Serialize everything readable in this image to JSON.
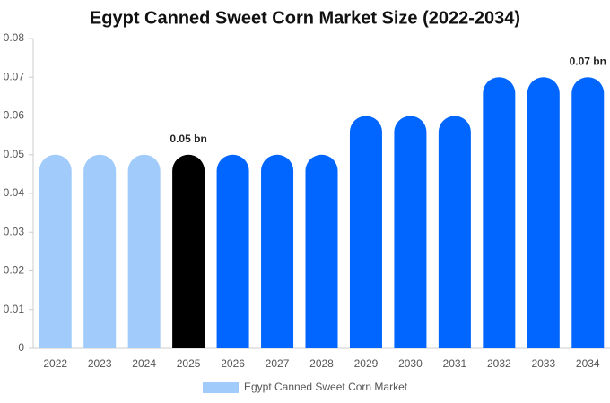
{
  "chart_data": {
    "type": "bar",
    "title": "Egypt Canned Sweet Corn Market Size (2022-2034)",
    "categories": [
      "2022",
      "2023",
      "2024",
      "2025",
      "2026",
      "2027",
      "2028",
      "2029",
      "2030",
      "2031",
      "2032",
      "2033",
      "2034"
    ],
    "series": [
      {
        "name": "Egypt Canned Sweet Corn Market",
        "color": "#a0cbfa",
        "values": [
          0.05,
          0.05,
          0.05,
          0.05,
          0.05,
          0.05,
          0.05,
          0.06,
          0.06,
          0.06,
          0.07,
          0.07,
          0.07
        ],
        "value_labels": [
          null,
          null,
          null,
          "0.05 bn",
          null,
          null,
          null,
          null,
          null,
          null,
          null,
          null,
          "0.07 bn"
        ],
        "colors": [
          "#a0cbfa",
          "#a0cbfa",
          "#a0cbfa",
          "#000000",
          "#0066ff",
          "#0066ff",
          "#0066ff",
          "#0066ff",
          "#0066ff",
          "#0066ff",
          "#0066ff",
          "#0066ff",
          "#0066ff"
        ]
      }
    ],
    "ylim": [
      0,
      0.08
    ],
    "yticks": [
      0,
      0.01,
      0.02,
      0.03,
      0.04,
      0.05,
      0.06,
      0.07,
      0.08
    ],
    "grid": false,
    "legend": "bottom"
  }
}
